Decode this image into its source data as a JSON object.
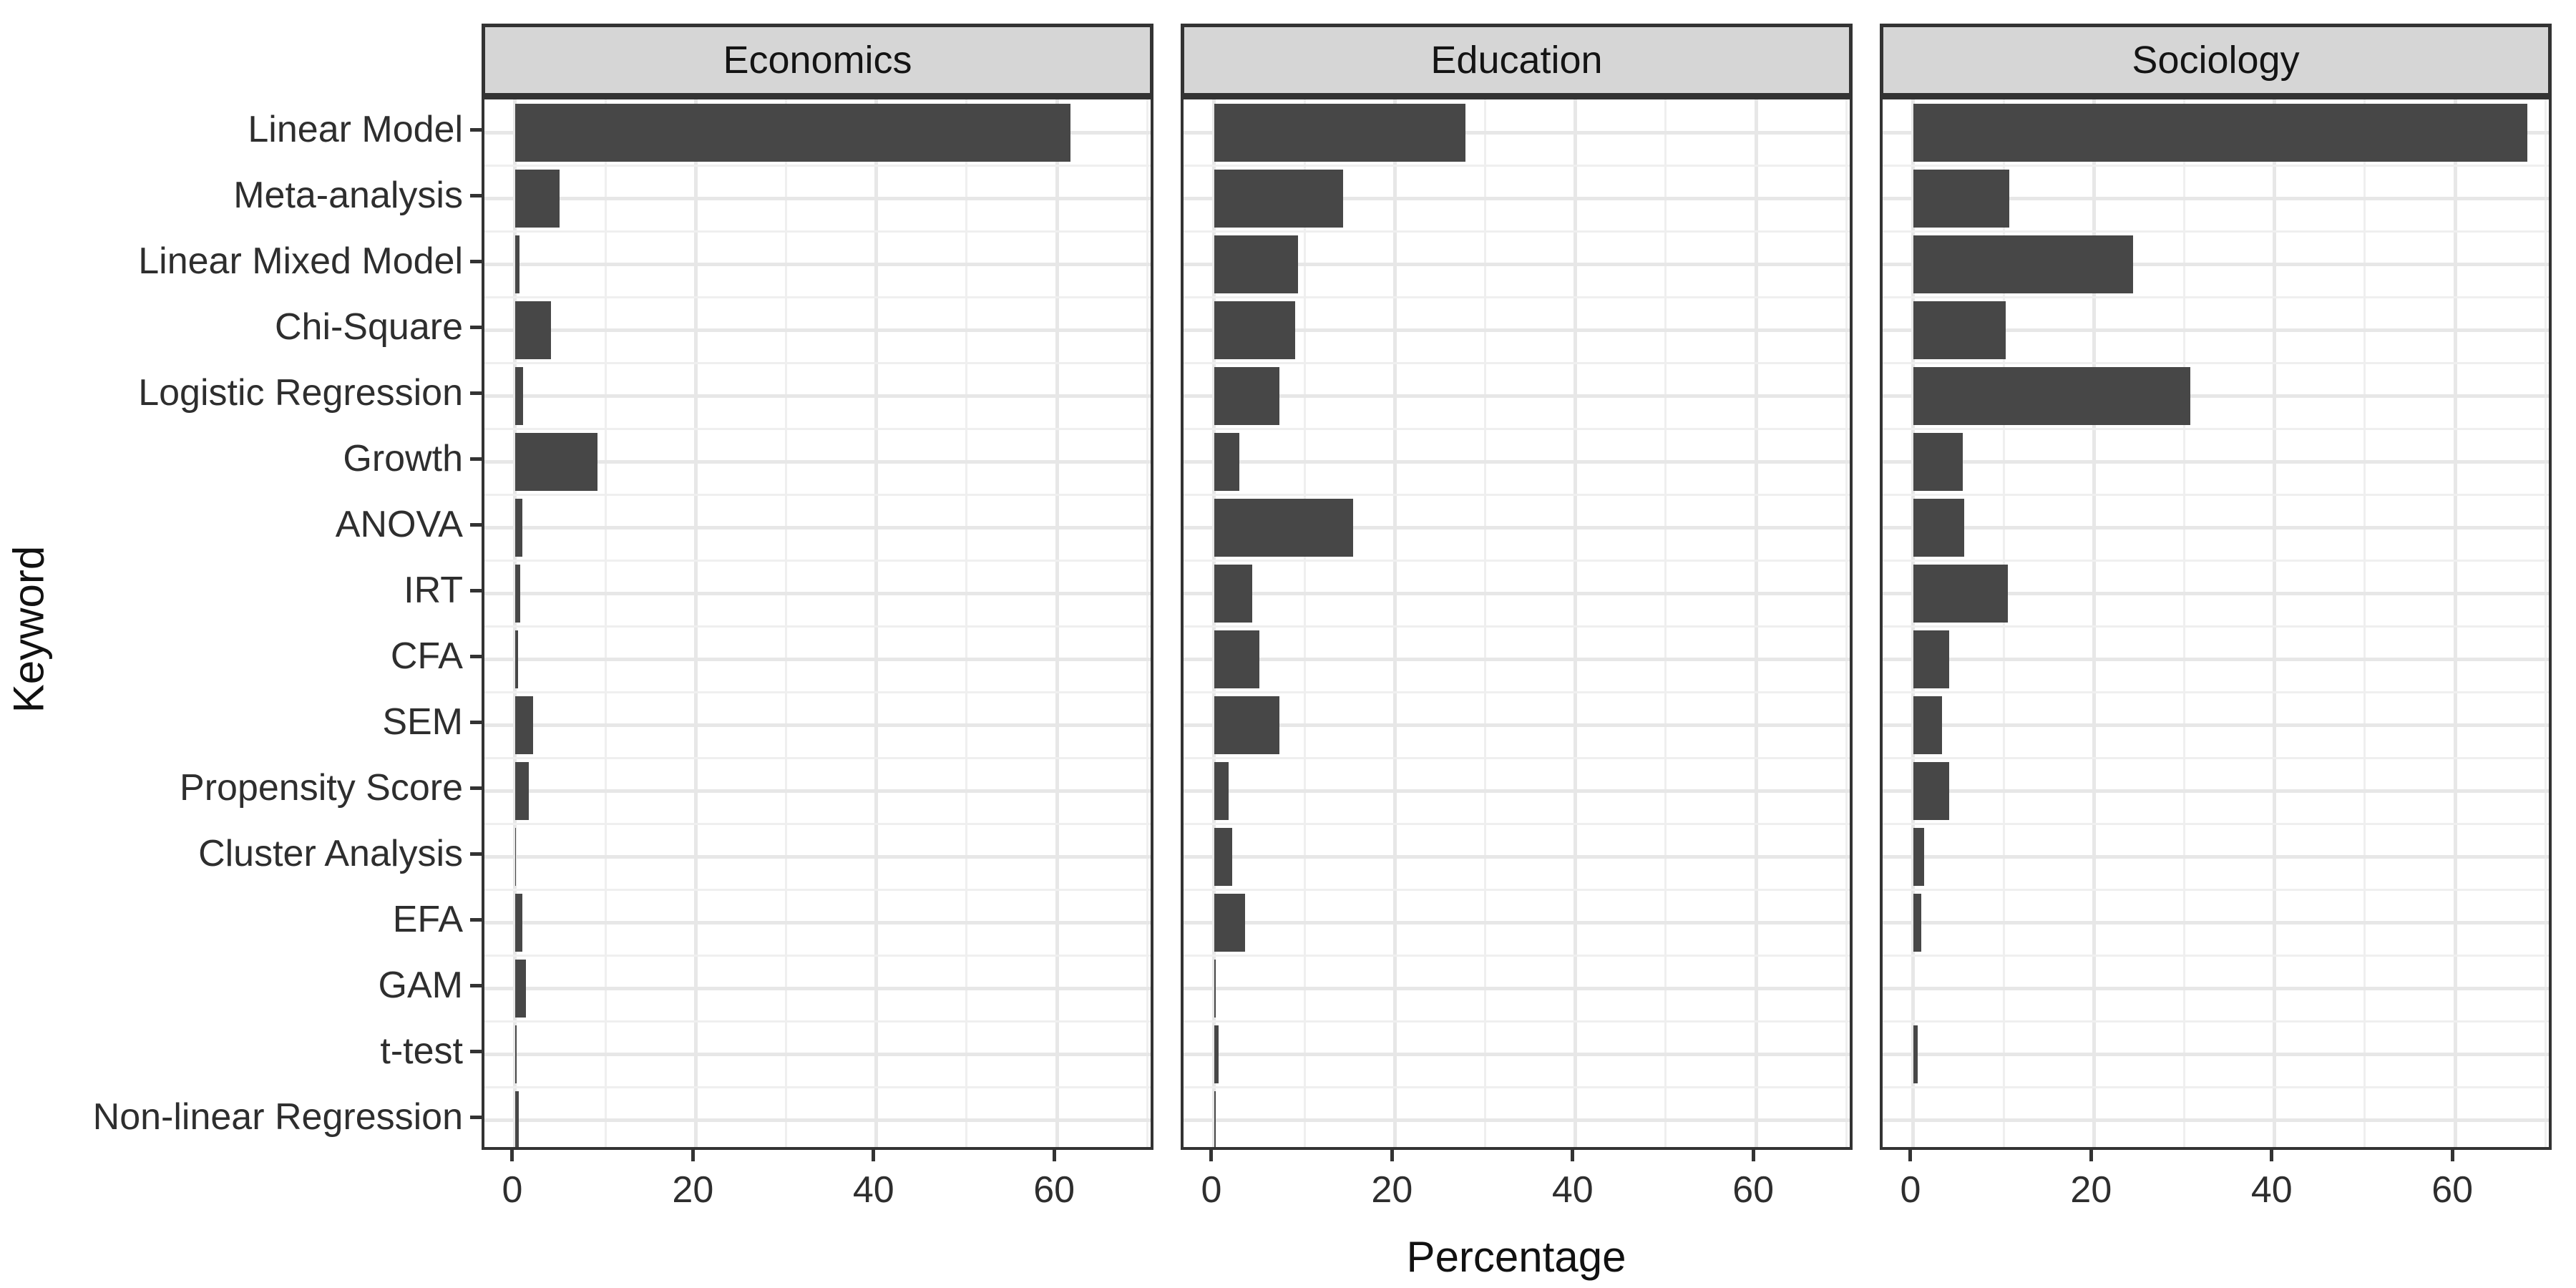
{
  "chart_data": {
    "type": "bar",
    "orientation": "horizontal",
    "title": "",
    "xlabel": "Percentage",
    "ylabel": "Keyword",
    "x_ticks": [
      0,
      20,
      40,
      60
    ],
    "xlim": [
      -3.4,
      71
    ],
    "grid": "on",
    "legend": "none",
    "facets": [
      "Economics",
      "Education",
      "Sociology"
    ],
    "categories": [
      "Linear Model",
      "Meta-analysis",
      "Linear Mixed Model",
      "Chi-Square",
      "Logistic Regression",
      "Growth",
      "ANOVA",
      "IRT",
      "CFA",
      "SEM",
      "Propensity Score",
      "Cluster Analysis",
      "EFA",
      "GAM",
      "t-test",
      "Non-linear Regression"
    ],
    "series": [
      {
        "name": "Economics",
        "values": [
          61.5,
          4.9,
          0.5,
          4.0,
          0.9,
          9.1,
          0.8,
          0.6,
          0.3,
          2.0,
          1.5,
          0.1,
          0.8,
          1.2,
          0.2,
          0.4
        ]
      },
      {
        "name": "Education",
        "values": [
          27.8,
          14.3,
          9.3,
          9.0,
          7.2,
          2.8,
          15.4,
          4.2,
          5.0,
          7.2,
          1.6,
          2.0,
          3.4,
          0.2,
          0.5,
          0.2
        ]
      },
      {
        "name": "Sociology",
        "values": [
          68.0,
          10.6,
          24.3,
          10.2,
          30.7,
          5.5,
          5.6,
          10.5,
          4.0,
          3.2,
          4.0,
          1.2,
          0.9,
          0.0,
          0.5,
          0.0
        ]
      }
    ]
  },
  "colors": {
    "bar": "#474747",
    "strip_fill": "#D6D6D6",
    "panel_border": "#333333",
    "grid_major": "#E7E7E7",
    "grid_minor": "#EFEFEF",
    "tick": "#333333",
    "axis_text": "#2E2E2E",
    "title_text": "#111111"
  }
}
